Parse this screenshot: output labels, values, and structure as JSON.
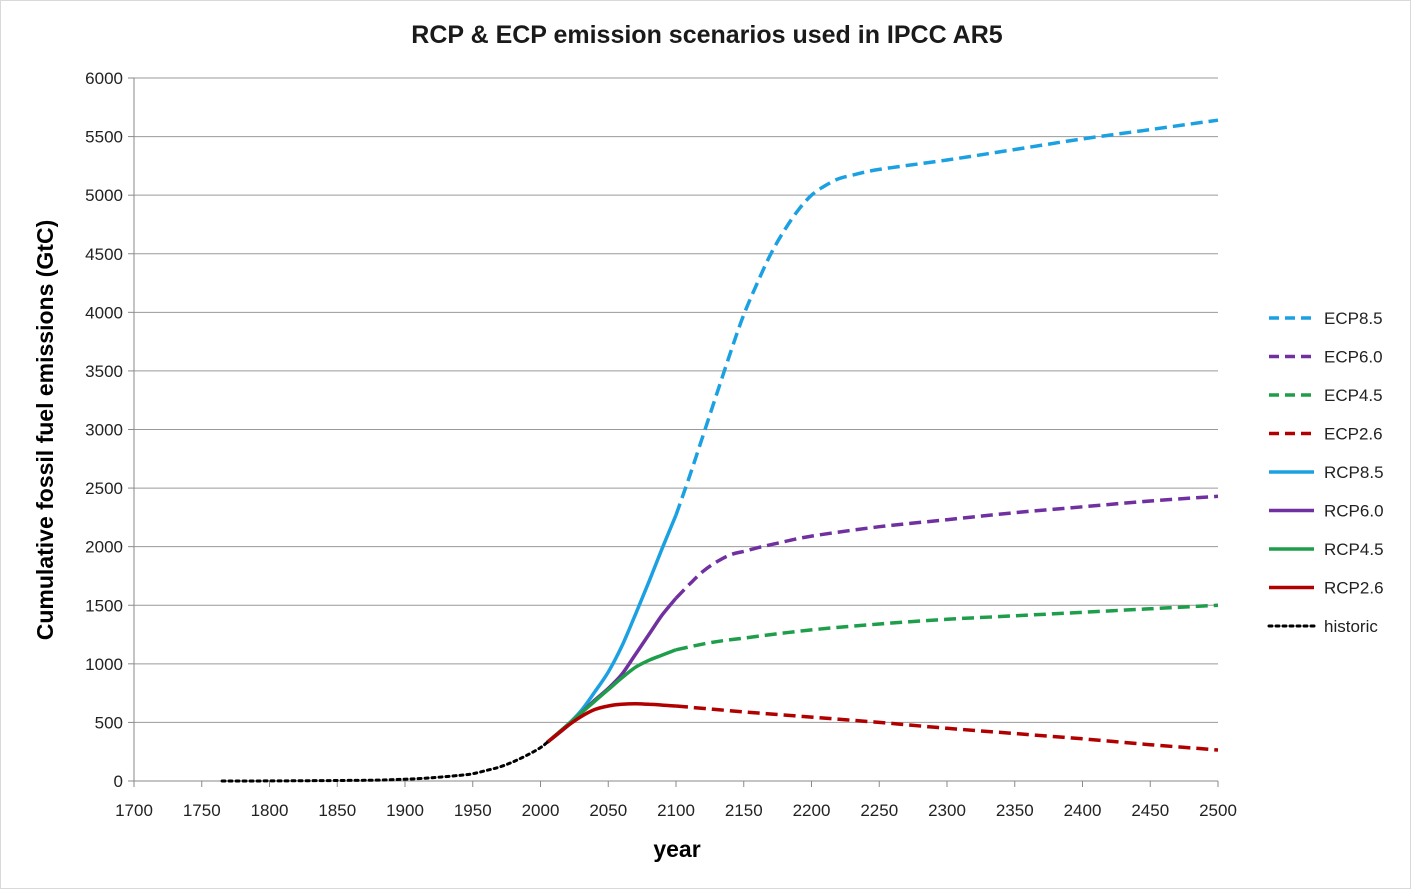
{
  "chart_data": {
    "type": "line",
    "title": "RCP & ECP emission scenarios used in IPCC AR5",
    "xlabel": "year",
    "ylabel": "Cumulative fossil fuel emissions (GtC)",
    "xlim": [
      1700,
      2500
    ],
    "ylim": [
      0,
      6000
    ],
    "xticks": [
      1700,
      1750,
      1800,
      1850,
      1900,
      1950,
      2000,
      2050,
      2100,
      2150,
      2200,
      2250,
      2300,
      2350,
      2400,
      2450,
      2500
    ],
    "yticks": [
      0,
      500,
      1000,
      1500,
      2000,
      2500,
      3000,
      3500,
      4000,
      4500,
      5000,
      5500,
      6000
    ],
    "grid": "horizontal",
    "legend_position": "right",
    "series": [
      {
        "name": "ECP8.5",
        "color": "#1ba1e2",
        "dash": "dashed",
        "x": [
          2100,
          2110,
          2120,
          2130,
          2140,
          2150,
          2160,
          2170,
          2180,
          2190,
          2200,
          2210,
          2220,
          2230,
          2250,
          2300,
          2350,
          2400,
          2450,
          2500
        ],
        "y": [
          2270,
          2600,
          2950,
          3300,
          3650,
          3980,
          4250,
          4500,
          4700,
          4870,
          5000,
          5080,
          5140,
          5170,
          5220,
          5300,
          5390,
          5480,
          5560,
          5640
        ]
      },
      {
        "name": "ECP6.0",
        "color": "#7030a0",
        "dash": "dashed",
        "x": [
          2100,
          2110,
          2120,
          2130,
          2140,
          2150,
          2160,
          2175,
          2200,
          2250,
          2300,
          2350,
          2400,
          2450,
          2500
        ],
        "y": [
          1560,
          1680,
          1790,
          1870,
          1930,
          1960,
          1990,
          2030,
          2090,
          2170,
          2230,
          2290,
          2340,
          2390,
          2430
        ]
      },
      {
        "name": "ECP4.5",
        "color": "#1e9e4a",
        "dash": "dashed",
        "x": [
          2100,
          2125,
          2150,
          2200,
          2250,
          2300,
          2350,
          2400,
          2450,
          2500
        ],
        "y": [
          1120,
          1180,
          1220,
          1290,
          1340,
          1380,
          1410,
          1440,
          1470,
          1500
        ]
      },
      {
        "name": "ECP2.6",
        "color": "#b00000",
        "dash": "dashed",
        "x": [
          2100,
          2150,
          2200,
          2250,
          2300,
          2350,
          2400,
          2450,
          2500
        ],
        "y": [
          640,
          590,
          545,
          500,
          450,
          405,
          360,
          310,
          265
        ]
      },
      {
        "name": "RCP8.5",
        "color": "#1ba1e2",
        "dash": "solid",
        "x": [
          2005,
          2020,
          2030,
          2040,
          2050,
          2060,
          2070,
          2080,
          2090,
          2100
        ],
        "y": [
          330,
          480,
          600,
          760,
          930,
          1150,
          1420,
          1700,
          1990,
          2270
        ]
      },
      {
        "name": "RCP6.0",
        "color": "#7030a0",
        "dash": "solid",
        "x": [
          2005,
          2020,
          2030,
          2040,
          2050,
          2060,
          2070,
          2080,
          2090,
          2100
        ],
        "y": [
          330,
          470,
          580,
          690,
          790,
          910,
          1080,
          1250,
          1420,
          1560
        ]
      },
      {
        "name": "RCP4.5",
        "color": "#1e9e4a",
        "dash": "solid",
        "x": [
          2005,
          2020,
          2030,
          2040,
          2050,
          2060,
          2070,
          2080,
          2090,
          2100
        ],
        "y": [
          330,
          480,
          580,
          680,
          780,
          880,
          970,
          1030,
          1075,
          1120
        ]
      },
      {
        "name": "RCP2.6",
        "color": "#b00000",
        "dash": "solid",
        "x": [
          2005,
          2020,
          2030,
          2040,
          2050,
          2060,
          2070,
          2080,
          2090,
          2100
        ],
        "y": [
          330,
          470,
          550,
          610,
          640,
          655,
          660,
          655,
          648,
          640
        ]
      },
      {
        "name": "historic",
        "color": "#000000",
        "dash": "dotted",
        "x": [
          1765,
          1800,
          1850,
          1880,
          1900,
          1920,
          1940,
          1950,
          1960,
          1970,
          1980,
          1990,
          2000,
          2005
        ],
        "y": [
          0,
          1,
          4,
          8,
          15,
          28,
          48,
          62,
          90,
          120,
          165,
          220,
          285,
          330
        ]
      }
    ]
  }
}
